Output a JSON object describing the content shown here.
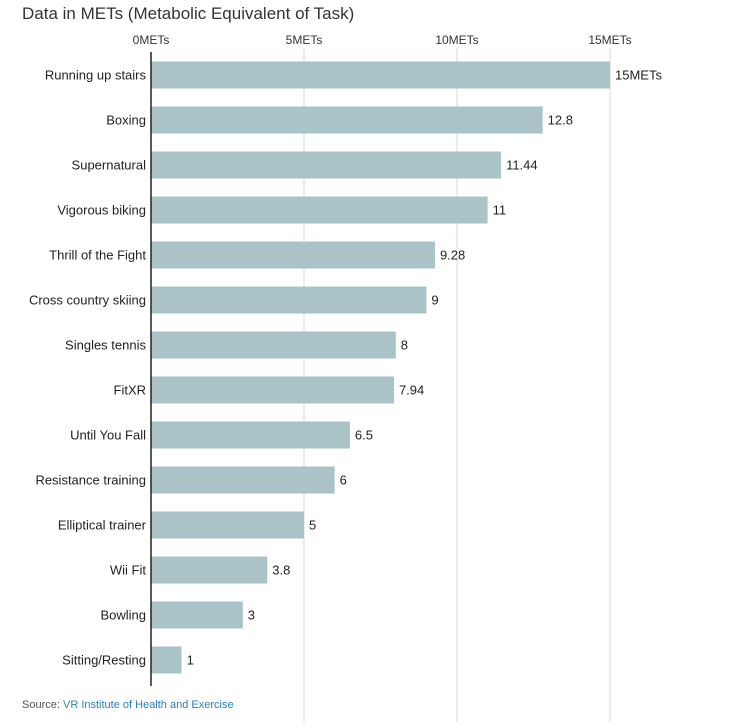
{
  "chart_data": {
    "type": "bar",
    "orientation": "horizontal",
    "title": "Data in METs (Metabolic Equivalent of Task)",
    "categories": [
      "Running up stairs",
      "Boxing",
      "Supernatural",
      "Vigorous biking",
      "Thrill of the Fight",
      "Cross country skiing",
      "Singles tennis",
      "FitXR",
      "Until You Fall",
      "Resistance training",
      "Elliptical trainer",
      "Wii Fit",
      "Bowling",
      "Sitting/Resting"
    ],
    "values": [
      15,
      12.8,
      11.44,
      11,
      9.28,
      9,
      8,
      7.94,
      6.5,
      6,
      5,
      3.8,
      3,
      1
    ],
    "value_labels": [
      "15METs",
      "12.8",
      "11.44",
      "11",
      "9.28",
      "9",
      "8",
      "7.94",
      "6.5",
      "6",
      "5",
      "3.8",
      "3",
      "1"
    ],
    "xlim": [
      0,
      15
    ],
    "ticks": [
      0,
      5,
      10,
      15
    ],
    "tick_labels": [
      "0METs",
      "5METs",
      "10METs",
      "15METs"
    ],
    "grid": true,
    "axis_position": "top",
    "bar_color": "#a9c3c7",
    "grid_color": "#d9d9d9",
    "axis_color": "#222222"
  },
  "source": {
    "prefix": "Source:",
    "link_text": "VR Institute of Health and Exercise",
    "link_color": "#2a7fb8"
  }
}
